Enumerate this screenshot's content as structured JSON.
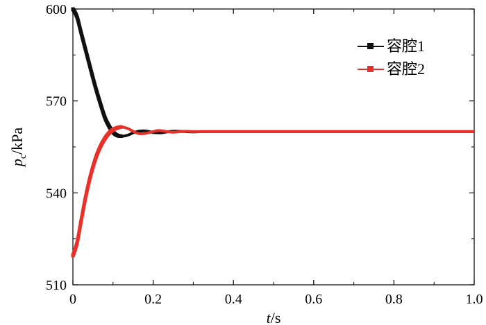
{
  "chart_data": {
    "type": "line",
    "title": "",
    "xlabel": {
      "var": "t",
      "unit": "/s"
    },
    "ylabel": {
      "var": "p",
      "sub": "c",
      "unit": "/kPa"
    },
    "xlim": [
      0,
      1.0
    ],
    "ylim": [
      510,
      600
    ],
    "xticks": [
      0,
      0.2,
      0.4,
      0.6,
      0.8,
      1.0
    ],
    "xtick_labels": [
      "0",
      "0.2",
      "0.4",
      "0.6",
      "0.8",
      "1.0"
    ],
    "yticks": [
      510,
      540,
      570,
      600
    ],
    "ytick_labels": [
      "510",
      "540",
      "570",
      "600"
    ],
    "grid": false,
    "legend_position": "top-right",
    "series": [
      {
        "name": "容腔1",
        "color": "#111111",
        "x": [
          0,
          0.01,
          0.02,
          0.03,
          0.04,
          0.05,
          0.06,
          0.07,
          0.08,
          0.09,
          0.1,
          0.11,
          0.12,
          0.13,
          0.14,
          0.15,
          0.16,
          0.17,
          0.18,
          0.19,
          0.2,
          0.21,
          0.22,
          0.23,
          0.24,
          0.25,
          0.26,
          0.28,
          0.3,
          0.32,
          0.35,
          0.4,
          0.5,
          0.6,
          0.7,
          0.8,
          0.9,
          1.0
        ],
        "y": [
          600,
          597.5,
          592.5,
          587.5,
          582.5,
          577.5,
          572.8,
          568.5,
          564.5,
          561.8,
          559.8,
          558.8,
          558.5,
          558.6,
          559.0,
          559.6,
          560.0,
          560.2,
          560.2,
          560.0,
          559.7,
          559.6,
          559.6,
          559.8,
          560.0,
          560.1,
          560.1,
          560.0,
          559.9,
          560.0,
          560.0,
          560.0,
          560.0,
          560.0,
          560.0,
          560.0,
          560.0,
          560.0
        ]
      },
      {
        "name": "容腔2",
        "color": "#e8312a",
        "x": [
          0,
          0.01,
          0.02,
          0.03,
          0.04,
          0.05,
          0.06,
          0.07,
          0.08,
          0.09,
          0.1,
          0.11,
          0.12,
          0.13,
          0.14,
          0.15,
          0.16,
          0.17,
          0.18,
          0.19,
          0.2,
          0.21,
          0.22,
          0.23,
          0.24,
          0.25,
          0.26,
          0.28,
          0.3,
          0.32,
          0.35,
          0.4,
          0.5,
          0.6,
          0.7,
          0.8,
          0.9,
          1.0
        ],
        "y": [
          519.5,
          523.5,
          530.5,
          537.5,
          543.5,
          548.5,
          552.5,
          555.5,
          557.8,
          559.5,
          560.6,
          561.2,
          561.5,
          561.3,
          560.8,
          560.1,
          559.5,
          559.3,
          559.4,
          559.7,
          560.0,
          560.3,
          560.3,
          560.1,
          559.9,
          559.8,
          559.9,
          560.1,
          560.0,
          560.0,
          560.0,
          560.0,
          560.0,
          560.0,
          560.0,
          560.0,
          560.0,
          560.0
        ]
      }
    ]
  }
}
